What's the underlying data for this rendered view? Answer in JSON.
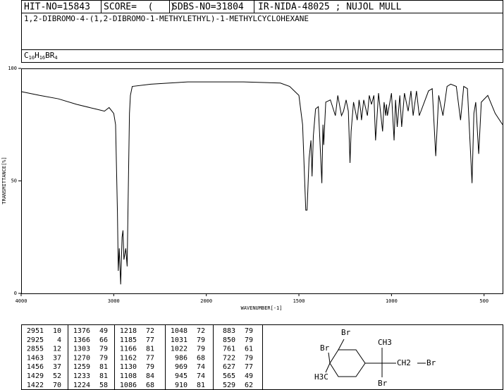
{
  "header": {
    "hit_no": "HIT-NO=15843",
    "score": "SCORE=  (   )",
    "sdbs_no": "SDBS-NO=31804",
    "method": "IR-NIDA-48025 ; NUJOL MULL",
    "name": "1,2-DIBROMO-4-(1,2-DIBROMO-1-METHYLETHYL)-1-METHYLCYCLOHEXANE",
    "formula": [
      "C",
      "10",
      "H",
      "16",
      "BR",
      "4"
    ]
  },
  "chart_data": {
    "type": "line",
    "xlabel": "WAVENUMBER[-1]",
    "ylabel": "TRANSMITTANCE[%]",
    "xlim": [
      4000,
      400
    ],
    "x_scale_doubles_below": 2000,
    "xticks": [
      4000,
      3000,
      2000,
      1500,
      1000,
      500
    ],
    "ylim": [
      0,
      100
    ],
    "yticks": [
      0,
      50,
      100
    ],
    "color": "#000000",
    "x": [
      4000,
      3800,
      3600,
      3400,
      3200,
      3100,
      3050,
      3000,
      2980,
      2960,
      2951,
      2940,
      2925,
      2910,
      2900,
      2890,
      2870,
      2855,
      2845,
      2830,
      2820,
      2800,
      2600,
      2400,
      2200,
      2000,
      1800,
      1600,
      1550,
      1500,
      1480,
      1463,
      1456,
      1445,
      1435,
      1429,
      1422,
      1410,
      1395,
      1376,
      1370,
      1366,
      1355,
      1330,
      1303,
      1290,
      1270,
      1259,
      1245,
      1233,
      1224,
      1218,
      1205,
      1185,
      1175,
      1166,
      1162,
      1150,
      1130,
      1120,
      1108,
      1095,
      1086,
      1070,
      1048,
      1040,
      1031,
      1027,
      1022,
      1000,
      986,
      978,
      969,
      955,
      945,
      930,
      910,
      895,
      883,
      865,
      850,
      800,
      780,
      761,
      745,
      722,
      700,
      680,
      650,
      627,
      610,
      590,
      565,
      555,
      545,
      529,
      515,
      480,
      440,
      400
    ],
    "values": [
      89.7,
      88,
      86.5,
      84,
      82,
      81,
      82.6,
      80,
      75,
      36,
      10,
      20,
      4,
      25,
      28,
      15,
      20,
      12,
      40,
      80,
      88,
      92,
      93,
      93.5,
      94,
      94,
      94,
      93.5,
      92,
      88,
      75,
      37,
      37,
      60,
      68,
      52,
      70,
      82,
      83,
      49,
      75,
      66,
      85,
      86,
      79,
      88,
      79,
      81,
      86,
      81,
      58,
      72,
      85,
      77,
      86,
      81,
      77,
      86,
      79,
      88,
      84,
      88,
      68,
      89,
      72,
      85,
      79,
      84,
      79,
      89,
      68,
      86,
      74,
      88,
      74,
      89,
      81,
      90,
      79,
      90,
      79,
      90,
      91,
      61,
      88,
      79,
      92,
      93,
      92,
      77,
      92,
      91,
      49,
      80,
      85,
      62,
      85,
      88,
      80,
      75
    ]
  },
  "peak_table": {
    "columns": [
      [
        [
          2951,
          10
        ],
        [
          2925,
          4
        ],
        [
          2855,
          12
        ],
        [
          1463,
          37
        ],
        [
          1456,
          37
        ],
        [
          1429,
          52
        ],
        [
          1422,
          70
        ]
      ],
      [
        [
          1376,
          49
        ],
        [
          1366,
          66
        ],
        [
          1303,
          79
        ],
        [
          1270,
          79
        ],
        [
          1259,
          81
        ],
        [
          1233,
          81
        ],
        [
          1224,
          58
        ]
      ],
      [
        [
          1218,
          72
        ],
        [
          1185,
          77
        ],
        [
          1166,
          81
        ],
        [
          1162,
          77
        ],
        [
          1130,
          79
        ],
        [
          1108,
          84
        ],
        [
          1086,
          68
        ]
      ],
      [
        [
          1048,
          72
        ],
        [
          1031,
          79
        ],
        [
          1022,
          79
        ],
        [
          986,
          68
        ],
        [
          969,
          74
        ],
        [
          945,
          74
        ],
        [
          910,
          81
        ]
      ],
      [
        [
          883,
          79
        ],
        [
          850,
          79
        ],
        [
          761,
          61
        ],
        [
          722,
          79
        ],
        [
          627,
          77
        ],
        [
          565,
          49
        ],
        [
          529,
          62
        ]
      ]
    ]
  },
  "structure": {
    "labels": [
      "Br",
      "Br",
      "H3C",
      "CH3",
      "CH2",
      "Br",
      "Br"
    ]
  }
}
